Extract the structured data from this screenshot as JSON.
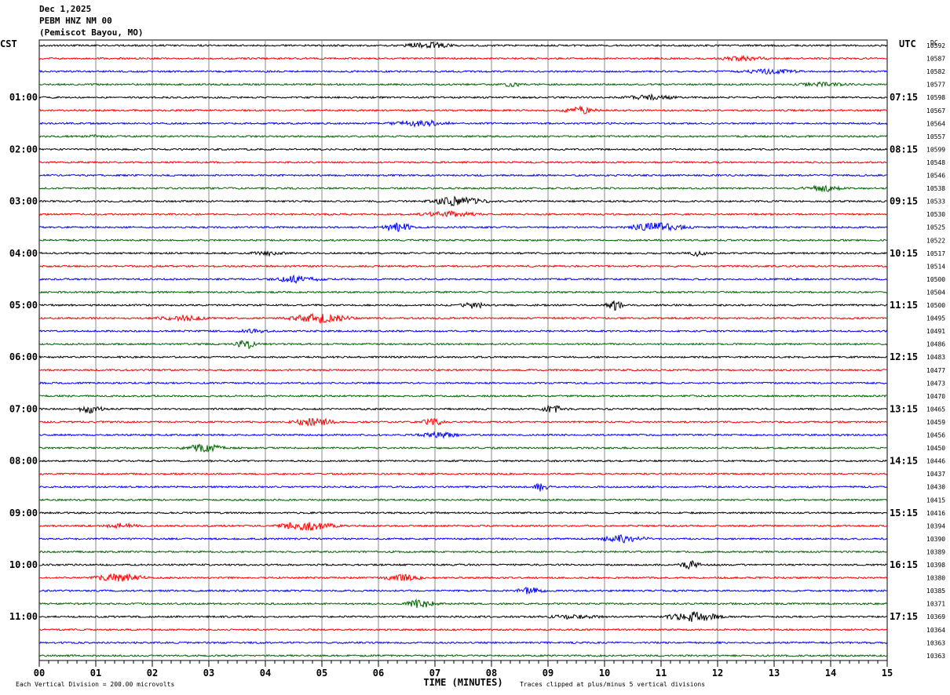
{
  "header": {
    "date": "Dec 1,2025",
    "station": "PEBM HNZ NM 00",
    "location": "(Pemiscot Bayou, MO)"
  },
  "footer": {
    "scale_note": "Each Vertical Division =  200.00 microvolts",
    "clip_note": "Traces clipped at plus/minus 5 vertical divisions"
  },
  "chart_data": {
    "type": "line",
    "title": "",
    "xlabel": "TIME (MINUTES)",
    "ylabel": "",
    "left_axis_label": "CST",
    "right_axis_label": "UTC",
    "dc_label": "DC",
    "xlim": [
      0,
      15
    ],
    "x_ticks": [
      "00",
      "01",
      "02",
      "03",
      "04",
      "05",
      "06",
      "07",
      "08",
      "09",
      "10",
      "11",
      "12",
      "13",
      "14",
      "15"
    ],
    "trace_colors": [
      "#000000",
      "#ff0000",
      "#0000ff",
      "#006400"
    ],
    "grid_vertical": true,
    "left_hour_labels": [
      "01:00",
      "02:00",
      "03:00",
      "04:00",
      "05:00",
      "06:00",
      "07:00",
      "08:00",
      "09:00",
      "10:00",
      "11:00"
    ],
    "right_hour_labels": [
      "07:15",
      "08:15",
      "09:15",
      "10:15",
      "11:15",
      "12:15",
      "13:15",
      "14:15",
      "15:15",
      "16:15",
      "17:15"
    ],
    "dc_offsets": [
      "10592",
      "10587",
      "10582",
      "10577",
      "10598",
      "10567",
      "10564",
      "10557",
      "10599",
      "10548",
      "10546",
      "10538",
      "10533",
      "10530",
      "10525",
      "10522",
      "10517",
      "10514",
      "10500",
      "10504",
      "10500",
      "10495",
      "10491",
      "10486",
      "10483",
      "10477",
      "10473",
      "10470",
      "10465",
      "10459",
      "10456",
      "10450",
      "10446",
      "10437",
      "10430",
      "10415",
      "10416",
      "10394",
      "10390",
      "10389",
      "10398",
      "10380",
      "10385",
      "10371",
      "10369",
      "10364",
      "10363",
      "10363"
    ],
    "trace_count": 48,
    "minutes_per_trace": 15
  }
}
